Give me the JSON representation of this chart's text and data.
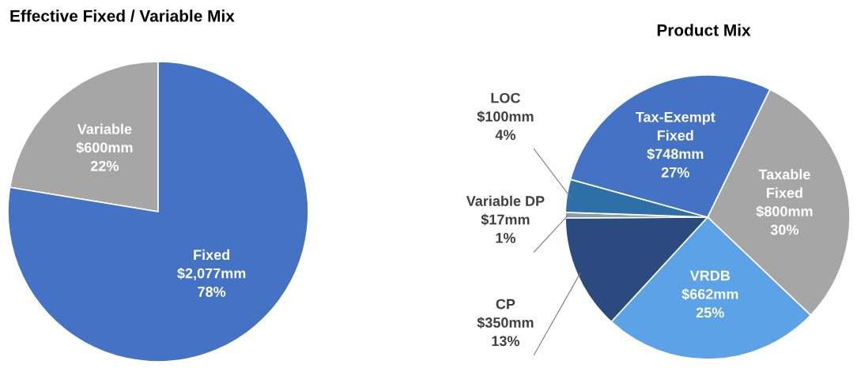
{
  "chart_data": [
    {
      "type": "pie",
      "title": "Effective Fixed / Variable Mix",
      "categories": [
        "Variable",
        "Fixed"
      ],
      "values": [
        600,
        2077
      ],
      "colors": [
        "#a6a6a6",
        "#4472c4"
      ],
      "value_labels": [
        "$600mm\n22%",
        "$2,077mm\n78%"
      ]
    },
    {
      "type": "pie",
      "title": "Product Mix",
      "categories": [
        "Taxable\nFixed",
        "VRDB",
        "CP",
        "Variable DP",
        "LOC",
        "Tax-Exempt\nFixed"
      ],
      "values": [
        800,
        662,
        350,
        17,
        100,
        748
      ],
      "colors": [
        "#a6a6a6",
        "#5ba3e6",
        "#2a4a80",
        "#8a9bb0",
        "#2f6fa8",
        "#4472c4"
      ],
      "value_labels": [
        "$800mm\n30%",
        "$662mm\n25%",
        "$350mm\n13%",
        "$17mm\n1%",
        "$100mm\n4%",
        "$748mm\n27%"
      ]
    }
  ]
}
